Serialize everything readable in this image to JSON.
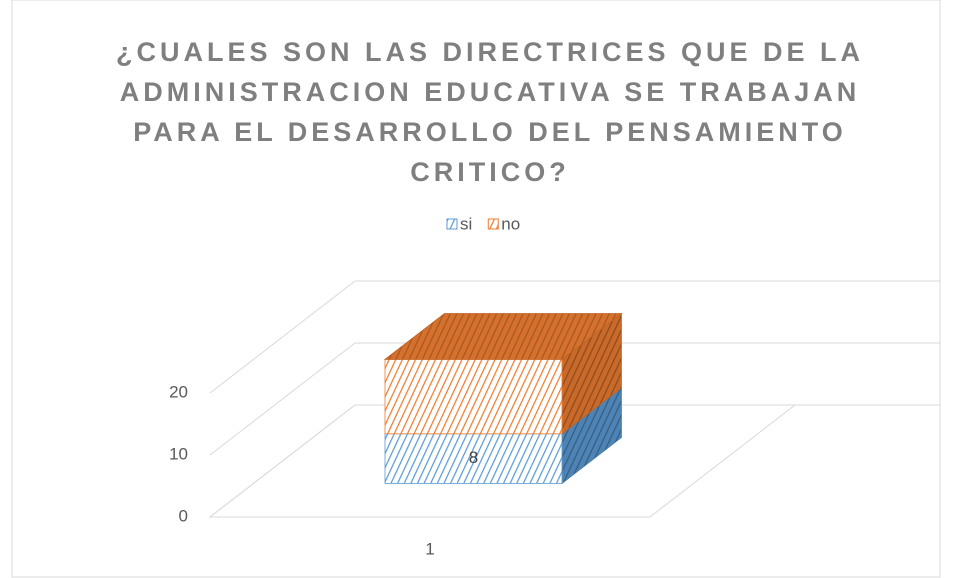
{
  "chart_data": {
    "type": "bar3d_stacked",
    "title": "¿CUALES SON LAS DIRECTRICES QUE DE LA ADMINISTRACION EDUCATIVA SE TRABAJAN PARA EL DESARROLLO DEL PENSAMIENTO CRITICO?",
    "categories": [
      "1"
    ],
    "series": [
      {
        "name": "si",
        "color": "#5b9bd5",
        "values": [
          8
        ],
        "show_labels": true
      },
      {
        "name": "no",
        "color": "#ed7d31",
        "values": [
          12
        ],
        "show_labels": false
      }
    ],
    "ylim": [
      0,
      20
    ],
    "yticks": [
      0,
      10,
      20
    ],
    "grid": true,
    "legend": "top"
  }
}
